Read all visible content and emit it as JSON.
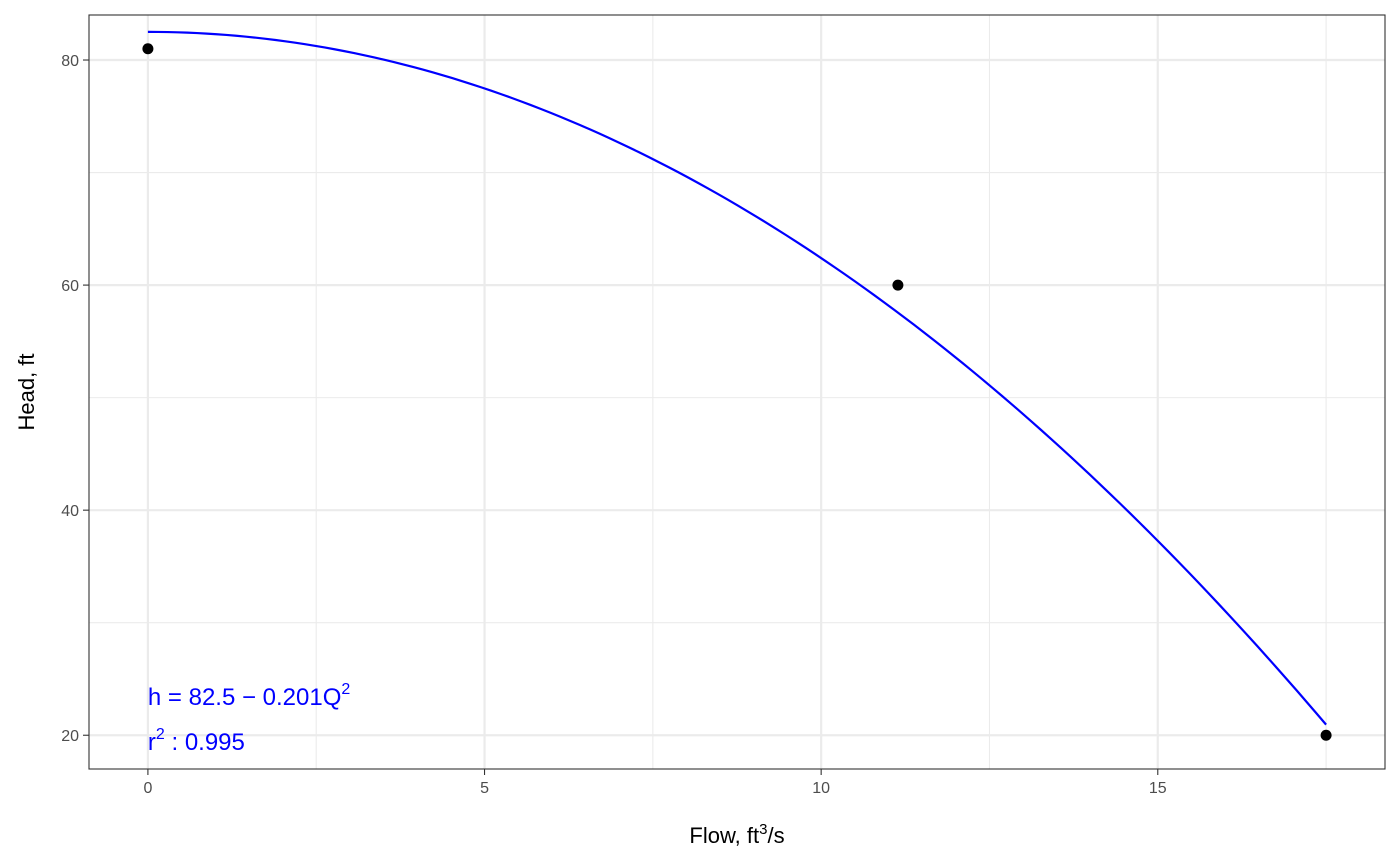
{
  "chart_data": {
    "type": "scatter",
    "xlabel": "Flow,  ft",
    "xlabel_superscript": "3",
    "xlabel_suffix": "/s",
    "ylabel": "Head, ft",
    "xlim": [
      -0.875,
      18.375
    ],
    "ylim": [
      17.0,
      84.0
    ],
    "x_major_ticks": [
      0,
      5,
      10,
      15
    ],
    "x_tick_labels": [
      "0",
      "5",
      "10",
      "15"
    ],
    "x_minor_ticks": [
      2.5,
      7.5,
      12.5,
      17.5
    ],
    "y_major_ticks": [
      20,
      40,
      60,
      80
    ],
    "y_tick_labels": [
      "20",
      "40",
      "60",
      "80"
    ],
    "y_minor_ticks": [
      30,
      50,
      70
    ],
    "grid": true,
    "points": {
      "x": [
        0,
        11.14,
        17.5
      ],
      "y": [
        81,
        60,
        20
      ],
      "color": "#000000"
    },
    "fit": {
      "equation": "h = 82.5 - 0.201Q^2",
      "intercept": 82.5,
      "coefficient": -0.201,
      "x_range": [
        0,
        17.5
      ],
      "color": "#0000ff"
    },
    "annotations": {
      "equation_text": "h = 82.5 − 0.201Q",
      "equation_superscript": "2",
      "r2_prefix": "r",
      "r2_superscript": "2",
      "r2_text": " : 0.995",
      "color": "#0000ff"
    }
  }
}
